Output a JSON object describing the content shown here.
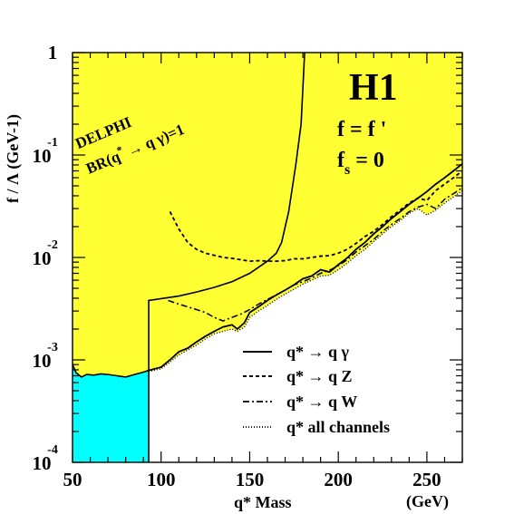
{
  "chart_data": {
    "type": "line",
    "title": "",
    "xlabel": "q* Mass",
    "xunit": "(GeV)",
    "ylabel": "f / Λ (GeV-1)",
    "xlim": [
      50,
      270
    ],
    "ylim": [
      0.0001,
      1
    ],
    "yscale": "log",
    "x_ticks": [
      "50",
      "100",
      "150",
      "200",
      "250"
    ],
    "y_ticks": [
      {
        "base": "1",
        "exp": ""
      },
      {
        "base": "10",
        "exp": "-1"
      },
      {
        "base": "10",
        "exp": "-2"
      },
      {
        "base": "10",
        "exp": "-3"
      },
      {
        "base": "10",
        "exp": "-4"
      }
    ],
    "experiment_label": "H1",
    "annotations": {
      "coupling_line1": "f = f '",
      "coupling_line2_main": "f",
      "coupling_line2_sub": "s",
      "coupling_line2_rest": " = 0",
      "delphi_name": "DELPHI",
      "delphi_br_prefix": "BR(q",
      "delphi_br_sup": "*",
      "delphi_br_suffix": " → q γ)=1"
    },
    "excluded_regions": [
      {
        "name": "H1 excluded (yellow)",
        "color": "#ffff33"
      },
      {
        "name": "DELPHI excluded (cyan)",
        "color": "#00ffff",
        "x": [
          50,
          52,
          55,
          58,
          62,
          66,
          70,
          75,
          80,
          85,
          90,
          93
        ],
        "y": [
          0.0009,
          0.00075,
          0.00068,
          0.00072,
          0.00071,
          0.00073,
          0.00072,
          0.0007,
          0.00068,
          0.00072,
          0.00076,
          0.00079
        ]
      }
    ],
    "series": [
      {
        "name": "q* → q γ",
        "style": "solid",
        "x": [
          93,
          100,
          105,
          110,
          115,
          120,
          125,
          130,
          135,
          140,
          143,
          147,
          150,
          155,
          160,
          165,
          170,
          175,
          180,
          185,
          190,
          195,
          200,
          205,
          210,
          215,
          220,
          225,
          230,
          235,
          240,
          245,
          250,
          255,
          260,
          265,
          270
        ],
        "y": [
          0.00079,
          0.00085,
          0.001,
          0.0012,
          0.0013,
          0.0015,
          0.0017,
          0.0019,
          0.0021,
          0.0022,
          0.002,
          0.0023,
          0.0029,
          0.0033,
          0.0038,
          0.0043,
          0.0048,
          0.0054,
          0.0062,
          0.0066,
          0.0076,
          0.0072,
          0.0085,
          0.0099,
          0.012,
          0.014,
          0.017,
          0.02,
          0.024,
          0.028,
          0.033,
          0.038,
          0.044,
          0.052,
          0.06,
          0.07,
          0.082
        ]
      },
      {
        "name": "q* → q Z",
        "style": "dashed",
        "x": [
          105,
          110,
          115,
          120,
          125,
          130,
          135,
          140,
          145,
          150,
          155,
          160,
          165,
          170,
          175,
          180,
          185,
          190,
          195,
          200,
          205,
          210,
          215,
          220,
          225,
          230,
          235,
          240,
          245,
          250,
          255,
          260,
          265,
          270
        ],
        "y": [
          0.028,
          0.019,
          0.014,
          0.012,
          0.011,
          0.0105,
          0.01,
          0.0098,
          0.0095,
          0.0092,
          0.0093,
          0.0092,
          0.0092,
          0.0093,
          0.0097,
          0.0097,
          0.01,
          0.0103,
          0.0104,
          0.011,
          0.012,
          0.0137,
          0.016,
          0.018,
          0.021,
          0.025,
          0.029,
          0.034,
          0.038,
          0.036,
          0.045,
          0.052,
          0.06,
          0.07
        ]
      },
      {
        "name": "q* → q W",
        "style": "dashdot",
        "x": [
          104,
          110,
          115,
          120,
          125,
          130,
          135,
          140,
          145,
          150,
          155,
          160,
          165,
          170,
          175,
          180,
          185,
          190,
          195,
          200,
          205,
          210,
          215,
          220,
          225,
          230,
          235,
          240,
          245,
          250,
          255,
          260,
          265,
          270
        ],
        "y": [
          0.0038,
          0.0035,
          0.0033,
          0.0031,
          0.0029,
          0.0026,
          0.0024,
          0.0026,
          0.0028,
          0.0031,
          0.0035,
          0.0039,
          0.0043,
          0.0048,
          0.0054,
          0.0058,
          0.0063,
          0.007,
          0.0075,
          0.0083,
          0.0095,
          0.0113,
          0.013,
          0.015,
          0.018,
          0.021,
          0.024,
          0.028,
          0.031,
          0.033,
          0.03,
          0.037,
          0.042,
          0.048
        ]
      },
      {
        "name": "q* all channels",
        "style": "dotted",
        "x": [
          93,
          100,
          105,
          110,
          115,
          120,
          125,
          130,
          135,
          140,
          143,
          147,
          150,
          155,
          160,
          165,
          170,
          175,
          180,
          185,
          190,
          195,
          200,
          205,
          210,
          215,
          220,
          225,
          230,
          235,
          240,
          245,
          250,
          255,
          260,
          265,
          270
        ],
        "y": [
          0.00077,
          0.00082,
          0.00095,
          0.00112,
          0.00125,
          0.0014,
          0.0016,
          0.0018,
          0.0019,
          0.002,
          0.0019,
          0.0021,
          0.0026,
          0.003,
          0.0034,
          0.0039,
          0.0044,
          0.0049,
          0.0055,
          0.006,
          0.0066,
          0.0067,
          0.0076,
          0.0088,
          0.0104,
          0.012,
          0.0143,
          0.017,
          0.02,
          0.023,
          0.027,
          0.03,
          0.026,
          0.029,
          0.034,
          0.039,
          0.045
        ]
      }
    ],
    "h1_upper_boundary": {
      "x": [
        93,
        93,
        110,
        120,
        130,
        140,
        150,
        160,
        165,
        168,
        172,
        176,
        179,
        181
      ],
      "y": [
        0.0001,
        0.0038,
        0.0042,
        0.0046,
        0.0051,
        0.0058,
        0.007,
        0.0092,
        0.011,
        0.014,
        0.028,
        0.08,
        0.2,
        1.0
      ]
    },
    "legend_position": "bottom-right"
  }
}
